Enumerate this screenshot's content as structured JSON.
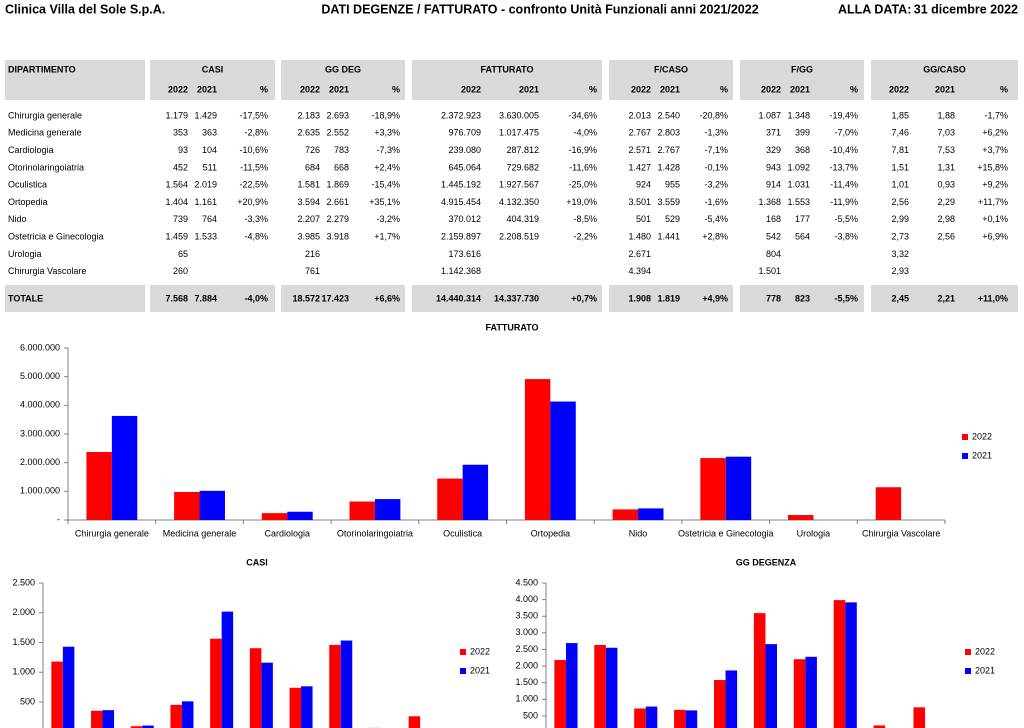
{
  "header": {
    "company": "Clinica Villa del Sole S.p.A.",
    "title": "DATI DEGENZE / FATTURATO - confronto Unità Funzionali anni 2021/2022",
    "date_label": "ALLA DATA:",
    "date": "31 dicembre 2022"
  },
  "table": {
    "groups": [
      {
        "name": "DIPARTIMENTO"
      },
      {
        "name": "CASI",
        "sub": [
          "2022",
          "2021",
          "%"
        ]
      },
      {
        "name": "GG DEG",
        "sub": [
          "2022",
          "2021",
          "%"
        ]
      },
      {
        "name": "FATTURATO",
        "sub": [
          "2022",
          "2021",
          "%"
        ]
      },
      {
        "name": "F/CASO",
        "sub": [
          "2022",
          "2021",
          "%"
        ]
      },
      {
        "name": "F/GG",
        "sub": [
          "2022",
          "2021",
          "%"
        ]
      },
      {
        "name": "GG/CASO",
        "sub": [
          "2022",
          "2021",
          "%"
        ]
      }
    ],
    "rows": [
      [
        "Chirurgia generale",
        "1.179",
        "1.429",
        "-17,5%",
        "2.183",
        "2.693",
        "-18,9%",
        "2.372.923",
        "3.630.005",
        "-34,6%",
        "2.013",
        "2.540",
        "-20,8%",
        "1.087",
        "1.348",
        "-19,4%",
        "1,85",
        "1,88",
        "-1,7%"
      ],
      [
        "Medicina generale",
        "353",
        "363",
        "-2,8%",
        "2.635",
        "2.552",
        "+3,3%",
        "976.709",
        "1.017.475",
        "-4,0%",
        "2.767",
        "2.803",
        "-1,3%",
        "371",
        "399",
        "-7,0%",
        "7,46",
        "7,03",
        "+6,2%"
      ],
      [
        "Cardiologia",
        "93",
        "104",
        "-10,6%",
        "726",
        "783",
        "-7,3%",
        "239.080",
        "287.812",
        "-16,9%",
        "2.571",
        "2.767",
        "-7,1%",
        "329",
        "368",
        "-10,4%",
        "7,81",
        "7,53",
        "+3,7%"
      ],
      [
        "Otorinolaringoiatria",
        "452",
        "511",
        "-11,5%",
        "684",
        "668",
        "+2,4%",
        "645.064",
        "729.682",
        "-11,6%",
        "1.427",
        "1.428",
        "-0,1%",
        "943",
        "1.092",
        "-13,7%",
        "1,51",
        "1,31",
        "+15,8%"
      ],
      [
        "Oculistica",
        "1.564",
        "2.019",
        "-22,5%",
        "1.581",
        "1.869",
        "-15,4%",
        "1.445.192",
        "1.927.567",
        "-25,0%",
        "924",
        "955",
        "-3,2%",
        "914",
        "1.031",
        "-11,4%",
        "1,01",
        "0,93",
        "+9,2%"
      ],
      [
        "Ortopedia",
        "1.404",
        "1.161",
        "+20,9%",
        "3.594",
        "2.661",
        "+35,1%",
        "4.915.454",
        "4.132.350",
        "+19,0%",
        "3.501",
        "3.559",
        "-1,6%",
        "1.368",
        "1.553",
        "-11,9%",
        "2,56",
        "2,29",
        "+11,7%"
      ],
      [
        "Nido",
        "739",
        "764",
        "-3,3%",
        "2.207",
        "2.279",
        "-3,2%",
        "370.012",
        "404.319",
        "-8,5%",
        "501",
        "529",
        "-5,4%",
        "168",
        "177",
        "-5,5%",
        "2,99",
        "2,98",
        "+0,1%"
      ],
      [
        "Ostetricia e Ginecologia",
        "1.459",
        "1.533",
        "-4,8%",
        "3.985",
        "3.918",
        "+1,7%",
        "2.159.897",
        "2.208.519",
        "-2,2%",
        "1.480",
        "1.441",
        "+2,8%",
        "542",
        "564",
        "-3,8%",
        "2,73",
        "2,56",
        "+6,9%"
      ],
      [
        "Urologia",
        "65",
        null,
        null,
        "216",
        null,
        null,
        "173.616",
        null,
        null,
        "2.671",
        null,
        null,
        "804",
        null,
        null,
        "3,32",
        null,
        null
      ],
      [
        "Chirurgia Vascolare",
        "260",
        null,
        null,
        "761",
        null,
        null,
        "1.142.368",
        null,
        null,
        "4.394",
        null,
        null,
        "1.501",
        null,
        null,
        "2,93",
        null,
        null
      ]
    ],
    "total": [
      "TOTALE",
      "7.568",
      "7.884",
      "-4,0%",
      "18.572",
      "17.423",
      "+6,6%",
      "14.440.314",
      "14.337.730",
      "+0,7%",
      "1.908",
      "1.819",
      "+4,9%",
      "778",
      "823",
      "-5,5%",
      "2,45",
      "2,21",
      "+11,0%"
    ]
  },
  "chart_data": [
    {
      "type": "bar",
      "title": "FATTURATO",
      "categories": [
        "Chirurgia generale",
        "Medicina generale",
        "Cardiologia",
        "Otorinolaringoiatria",
        "Oculistica",
        "Ortopedia",
        "Nido",
        "Ostetricia e Ginecologia",
        "Urologia",
        "Chirurgia Vascolare"
      ],
      "series": [
        {
          "name": "2022",
          "color": "#ff0000",
          "values": [
            2372923,
            976709,
            239080,
            645064,
            1445192,
            4915454,
            370012,
            2159897,
            173616,
            1142368
          ]
        },
        {
          "name": "2021",
          "color": "#0000ff",
          "values": [
            3630005,
            1017475,
            287812,
            729682,
            1927567,
            4132350,
            404319,
            2208519,
            null,
            null
          ]
        }
      ],
      "ylim": [
        0,
        6000000
      ],
      "yticks": [
        {
          "value": 0,
          "label": "-"
        },
        {
          "value": 1000000,
          "label": "1.000.000"
        },
        {
          "value": 2000000,
          "label": "2.000.000"
        },
        {
          "value": 3000000,
          "label": "3.000.000"
        },
        {
          "value": 4000000,
          "label": "4.000.000"
        },
        {
          "value": 5000000,
          "label": "5.000.000"
        },
        {
          "value": 6000000,
          "label": "6.000.000"
        }
      ],
      "legend": "right"
    },
    {
      "type": "bar",
      "title": "CASI",
      "series": [
        {
          "name": "2022",
          "color": "#ff0000",
          "values": [
            1179,
            353,
            93,
            452,
            1564,
            1404,
            739,
            1459,
            65,
            260
          ]
        },
        {
          "name": "2021",
          "color": "#0000ff",
          "values": [
            1429,
            363,
            104,
            511,
            2019,
            1161,
            764,
            1533,
            null,
            null
          ]
        }
      ],
      "ylim": [
        0,
        2500
      ],
      "yticks": [
        500,
        {
          "value": 1000,
          "label": "1.000"
        },
        {
          "value": 1500,
          "label": "1.500"
        },
        {
          "value": 2000,
          "label": "2.000"
        },
        {
          "value": 2500,
          "label": "2.500"
        }
      ],
      "legend": "right"
    },
    {
      "type": "bar",
      "title": "GG DEGENZA",
      "series": [
        {
          "name": "2022",
          "color": "#ff0000",
          "values": [
            2183,
            2635,
            726,
            684,
            1581,
            3594,
            2207,
            3985,
            216,
            761
          ]
        },
        {
          "name": "2021",
          "color": "#0000ff",
          "values": [
            2693,
            2552,
            783,
            668,
            1869,
            2661,
            2279,
            3918,
            null,
            null
          ]
        }
      ],
      "ylim": [
        0,
        4500
      ],
      "yticks": [
        500,
        {
          "value": 1000,
          "label": "1.000"
        },
        {
          "value": 1500,
          "label": "1.500"
        },
        {
          "value": 2000,
          "label": "2.000"
        },
        {
          "value": 2500,
          "label": "2.500"
        },
        {
          "value": 3000,
          "label": "3.000"
        },
        {
          "value": 3500,
          "label": "3.500"
        },
        {
          "value": 4000,
          "label": "4.000"
        },
        {
          "value": 4500,
          "label": "4.500"
        }
      ],
      "legend": "right"
    }
  ]
}
